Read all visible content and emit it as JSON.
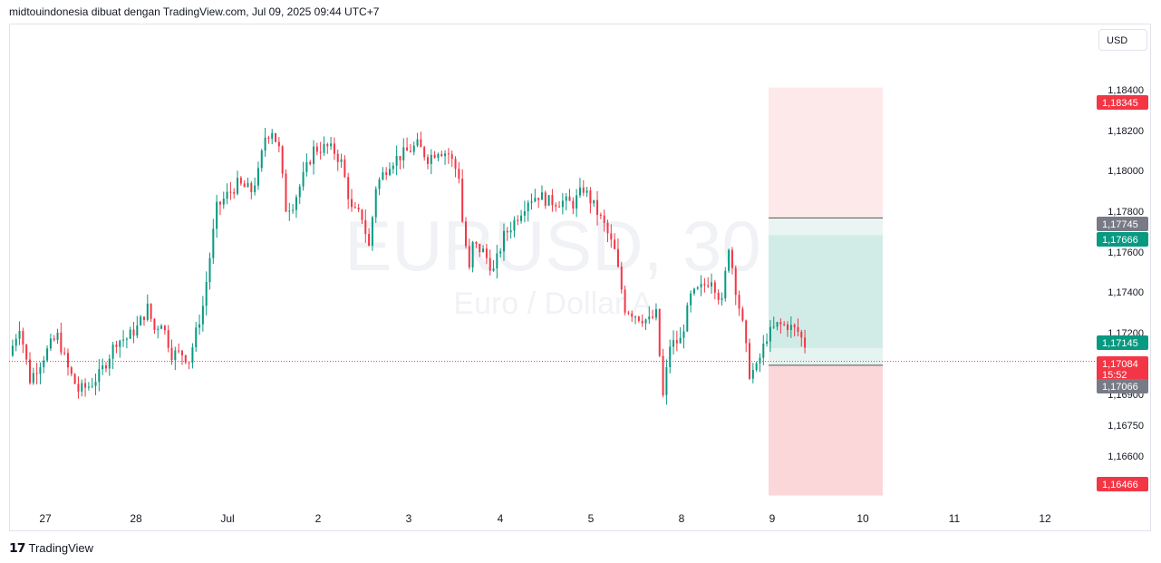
{
  "header": {
    "caption": "midtouindonesia dibuat dengan TradingView.com, Jul 09, 2025 09:44 UTC+7"
  },
  "currency_button": {
    "label": "USD"
  },
  "watermark": {
    "symbol": "EURUSD, 30",
    "description": "Euro / Dollar A"
  },
  "footer": {
    "brand": "TradingView",
    "logo_icon": "tradingview-logo-icon"
  },
  "colors": {
    "up": "#089981",
    "down": "#f23645",
    "stop_zone": "#f7525f",
    "target_zone": "#22ab94",
    "neutral_tag": "#787b86",
    "grid_text": "#131722"
  },
  "chart_data": {
    "type": "candlestick",
    "symbol": "EURUSD",
    "timeframe": "30",
    "x_tick_labels": [
      "27",
      "28",
      "Jul",
      "2",
      "3",
      "4",
      "5",
      "8",
      "9",
      "10",
      "11",
      "12"
    ],
    "y_tick_labels": [
      "1,18400",
      "1,18200",
      "1,18000",
      "1,17800",
      "1,17600",
      "1,17400",
      "1,17200",
      "1,16900",
      "1,16750",
      "1,16600"
    ],
    "ylim": [
      1.1641,
      1.1864
    ],
    "price_tags": [
      {
        "label": "1,18345",
        "value": 1.18345,
        "kind": "stop"
      },
      {
        "label": "1,17745",
        "value": 1.17745,
        "kind": "neutral"
      },
      {
        "label": "1,17666",
        "value": 1.17666,
        "kind": "target"
      },
      {
        "label": "1,17145",
        "value": 1.17145,
        "kind": "target"
      },
      {
        "label": "1,17084",
        "value": 1.17084,
        "kind": "last",
        "countdown": "15:52"
      },
      {
        "label": "1,17066",
        "value": 1.17066,
        "kind": "neutral"
      },
      {
        "label": "1,16466",
        "value": 1.16466,
        "kind": "stop"
      }
    ],
    "last_price": 1.17084,
    "position_tool": {
      "entry": 1.17066,
      "upper_stop": 1.18345,
      "upper_line": 1.17745,
      "target": 1.17666,
      "lower_target": 1.17145,
      "lower_stop": 1.16466
    },
    "path_points": [
      [
        0,
        1.1711
      ],
      [
        3,
        1.1725
      ],
      [
        6,
        1.17
      ],
      [
        9,
        1.1708
      ],
      [
        12,
        1.1716
      ],
      [
        14,
        1.172
      ],
      [
        17,
        1.1705
      ],
      [
        20,
        1.1695
      ],
      [
        23,
        1.1697
      ],
      [
        26,
        1.1702
      ],
      [
        28,
        1.1708
      ],
      [
        31,
        1.1718
      ],
      [
        34,
        1.1719
      ],
      [
        37,
        1.1724
      ],
      [
        40,
        1.1733
      ],
      [
        42,
        1.1723
      ],
      [
        44,
        1.1727
      ],
      [
        47,
        1.1712
      ],
      [
        50,
        1.1712
      ],
      [
        52,
        1.1709
      ],
      [
        56,
        1.1734
      ],
      [
        60,
        1.1779
      ],
      [
        63,
        1.1785
      ],
      [
        66,
        1.179
      ],
      [
        70,
        1.1787
      ],
      [
        72,
        1.1795
      ],
      [
        74,
        1.1812
      ],
      [
        76,
        1.1815
      ],
      [
        78,
        1.1806
      ],
      [
        80,
        1.1779
      ],
      [
        82,
        1.1781
      ],
      [
        84,
        1.1789
      ],
      [
        88,
        1.1806
      ],
      [
        92,
        1.1807
      ],
      [
        94,
        1.1805
      ],
      [
        96,
        1.18
      ],
      [
        99,
        1.1778
      ],
      [
        102,
        1.1775
      ],
      [
        104,
        1.1761
      ],
      [
        106,
        1.1789
      ],
      [
        110,
        1.18
      ],
      [
        114,
        1.1804
      ],
      [
        118,
        1.1808
      ],
      [
        121,
        1.1802
      ],
      [
        124,
        1.1806
      ],
      [
        127,
        1.1804
      ],
      [
        130,
        1.1794
      ],
      [
        131,
        1.1773
      ],
      [
        133,
        1.175
      ],
      [
        134,
        1.1762
      ],
      [
        137,
        1.1759
      ],
      [
        140,
        1.175
      ],
      [
        143,
        1.1766
      ],
      [
        146,
        1.1773
      ],
      [
        150,
        1.1783
      ],
      [
        153,
        1.1785
      ],
      [
        156,
        1.1782
      ],
      [
        160,
        1.1782
      ],
      [
        163,
        1.1781
      ],
      [
        166,
        1.1788
      ],
      [
        169,
        1.178
      ],
      [
        172,
        1.1771
      ],
      [
        175,
        1.1759
      ],
      [
        178,
        1.1733
      ],
      [
        182,
        1.1729
      ],
      [
        185,
        1.1727
      ],
      [
        187,
        1.173
      ],
      [
        189,
        1.1692
      ],
      [
        191,
        1.1716
      ],
      [
        194,
        1.1718
      ],
      [
        197,
        1.1738
      ],
      [
        200,
        1.1742
      ],
      [
        203,
        1.1747
      ],
      [
        206,
        1.1735
      ],
      [
        208,
        1.1762
      ],
      [
        210,
        1.1742
      ],
      [
        212,
        1.1725
      ],
      [
        214,
        1.1703
      ],
      [
        216,
        1.1705
      ],
      [
        219,
        1.172
      ],
      [
        222,
        1.1725
      ],
      [
        225,
        1.1725
      ],
      [
        228,
        1.1722
      ],
      [
        230,
        1.1716
      ]
    ]
  }
}
